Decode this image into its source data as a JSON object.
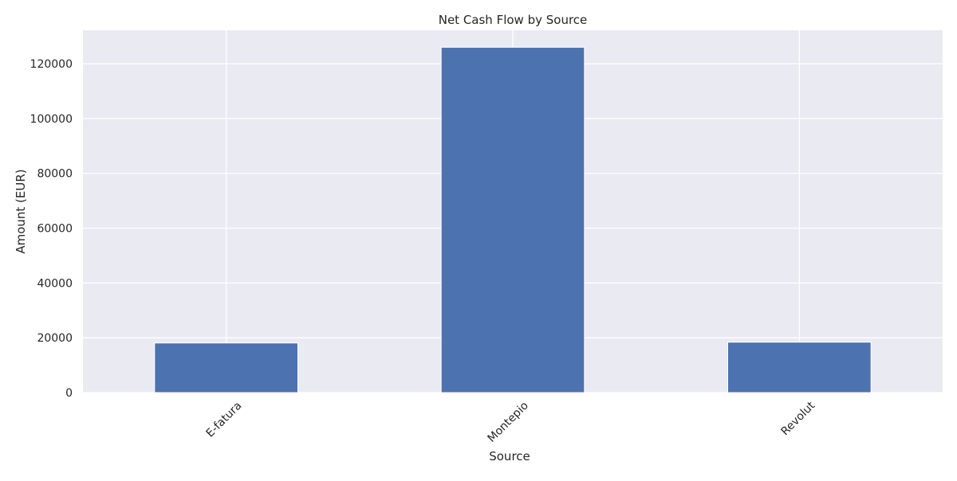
{
  "colors": {
    "plot_background": "#eaeaf2",
    "grid": "#ffffff",
    "bar": "#4c72b0",
    "text": "#262626"
  },
  "chart_data": {
    "type": "bar",
    "title": "Net Cash Flow by Source",
    "xlabel": "Source",
    "ylabel": "Amount (EUR)",
    "categories": [
      "E-fatura",
      "Montepio",
      "Revolut"
    ],
    "series": [
      {
        "values": [
          18100,
          126000,
          18400
        ]
      }
    ],
    "ylim": [
      0,
      132200
    ],
    "yticks": [
      0,
      20000,
      40000,
      60000,
      80000,
      100000,
      120000
    ],
    "ytick_labels": [
      "0",
      "20000",
      "40000",
      "60000",
      "80000",
      "100000",
      "120000"
    ],
    "grid": true,
    "legend": false,
    "xtick_rotation_deg": 45
  }
}
